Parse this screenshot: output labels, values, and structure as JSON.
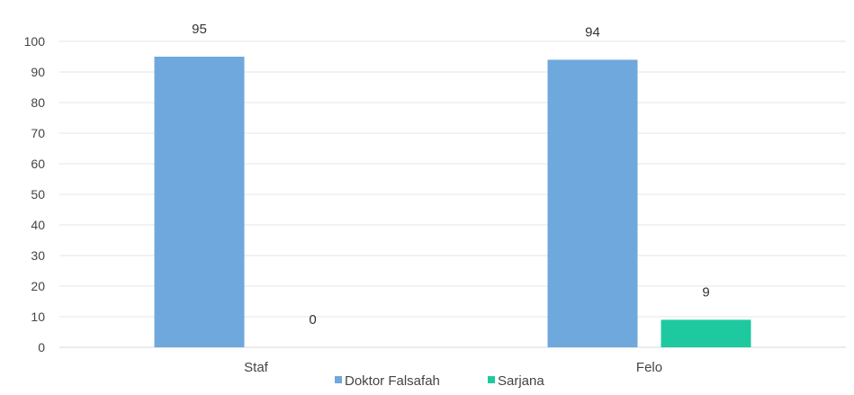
{
  "chart_data": {
    "type": "bar",
    "categories": [
      "Staf",
      "Felo"
    ],
    "series": [
      {
        "name": "Doktor Falsafah",
        "values": [
          95,
          94
        ],
        "color": "#6fa8dc"
      },
      {
        "name": "Sarjana",
        "values": [
          0,
          9
        ],
        "color": "#1fc9a0"
      }
    ],
    "ylim": [
      0,
      100
    ],
    "yticks": [
      0,
      10,
      20,
      30,
      40,
      50,
      60,
      70,
      80,
      90,
      100
    ],
    "grid": true,
    "legend": "bottom",
    "title": "",
    "xlabel": "",
    "ylabel": ""
  }
}
